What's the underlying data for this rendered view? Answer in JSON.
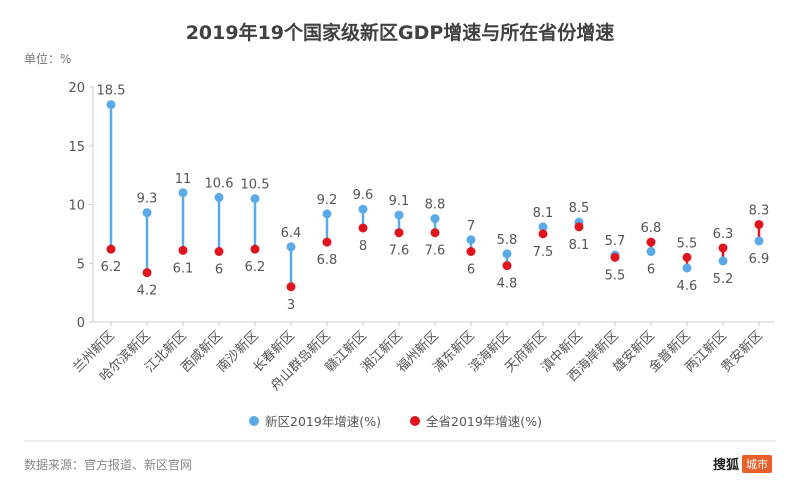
{
  "header": {
    "title": "2019年19个国家级新区GDP增速与所在省份增速",
    "unit": "单位：%"
  },
  "footer": {
    "source": "数据来源：官方报道、新区官网",
    "brand_main": "搜狐",
    "brand_tag": "城市"
  },
  "colors": {
    "new_area": "#5aaae8",
    "province": "#e0141e",
    "axis": "#cccccc",
    "text": "#555555"
  },
  "chart_data": {
    "type": "dumbbell",
    "title": "2019年19个国家级新区GDP增速与所在省份增速",
    "ylabel": "单位：%",
    "ylim": [
      0,
      20
    ],
    "yticks": [
      0,
      5,
      10,
      15,
      20
    ],
    "grid": false,
    "legend_position": "bottom",
    "categories": [
      "兰州新区",
      "哈尔滨新区",
      "江北新区",
      "西咸新区",
      "南沙新区",
      "长春新区",
      "舟山群岛新区",
      "赣江新区",
      "湘江新区",
      "福州新区",
      "浦东新区",
      "滨海新区",
      "天府新区",
      "滇中新区",
      "西海岸新区",
      "雄安新区",
      "金普新区",
      "两江新区",
      "贵安新区"
    ],
    "series": [
      {
        "name": "新区2019年增速(%)",
        "color": "#5aaae8",
        "values": [
          18.5,
          9.3,
          11,
          10.6,
          10.5,
          6.4,
          9.2,
          9.6,
          9.1,
          8.8,
          7,
          5.8,
          8.1,
          8.5,
          5.7,
          6,
          4.6,
          5.2,
          6.9
        ]
      },
      {
        "name": "全省2019年增速(%)",
        "color": "#e0141e",
        "values": [
          6.2,
          4.2,
          6.1,
          6,
          6.2,
          3,
          6.8,
          8,
          7.6,
          7.6,
          6,
          4.8,
          7.5,
          8.1,
          5.5,
          6.8,
          5.5,
          6.3,
          8.3
        ]
      }
    ]
  }
}
